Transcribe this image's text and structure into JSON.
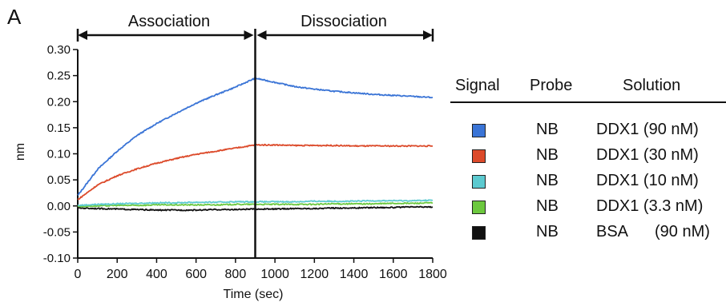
{
  "panel_label": "A",
  "phase_labels": {
    "association": "Association",
    "dissociation": "Dissociation"
  },
  "chart_data": {
    "type": "line",
    "xlabel": "Time (sec)",
    "ylabel": "nm",
    "xlim": [
      0,
      1800
    ],
    "ylim": [
      -0.1,
      0.3
    ],
    "x_ticks": [
      "0",
      "200",
      "400",
      "600",
      "800",
      "1000",
      "1200",
      "1400",
      "1600",
      "1800"
    ],
    "y_ticks": [
      "0.30",
      "0.25",
      "0.20",
      "0.15",
      "0.10",
      "0.05",
      "0.00",
      "-0.05",
      "-0.10"
    ],
    "phase_boundary": 900,
    "grid": false,
    "series": [
      {
        "probe": "NB",
        "solution": "DDX1 (90 nM)",
        "color": "#3a74d6",
        "x": [
          0,
          100,
          200,
          300,
          400,
          500,
          600,
          700,
          800,
          900,
          1000,
          1100,
          1200,
          1300,
          1400,
          1500,
          1600,
          1700,
          1800
        ],
        "y": [
          0.02,
          0.07,
          0.105,
          0.135,
          0.158,
          0.178,
          0.197,
          0.213,
          0.228,
          0.245,
          0.237,
          0.229,
          0.224,
          0.22,
          0.217,
          0.214,
          0.212,
          0.21,
          0.208
        ]
      },
      {
        "probe": "NB",
        "solution": "DDX1 (30 nM)",
        "color": "#dc4a2a",
        "x": [
          0,
          100,
          200,
          300,
          400,
          500,
          600,
          700,
          800,
          900,
          1000,
          1100,
          1200,
          1300,
          1400,
          1500,
          1600,
          1700,
          1800
        ],
        "y": [
          0.012,
          0.04,
          0.058,
          0.071,
          0.082,
          0.091,
          0.099,
          0.105,
          0.111,
          0.117,
          0.117,
          0.116,
          0.116,
          0.116,
          0.115,
          0.115,
          0.115,
          0.115,
          0.115
        ]
      },
      {
        "probe": "NB",
        "solution": "DDX1 (10 nM)",
        "color": "#5ccad0",
        "x": [
          0,
          100,
          200,
          300,
          400,
          500,
          600,
          700,
          800,
          900,
          1000,
          1100,
          1200,
          1300,
          1400,
          1500,
          1600,
          1700,
          1800
        ],
        "y": [
          0.001,
          0.003,
          0.004,
          0.005,
          0.006,
          0.006,
          0.007,
          0.007,
          0.008,
          0.008,
          0.008,
          0.008,
          0.009,
          0.009,
          0.009,
          0.01,
          0.01,
          0.01,
          0.011
        ]
      },
      {
        "probe": "NB",
        "solution": "DDX1 (3.3 nM)",
        "color": "#6cc83e",
        "x": [
          0,
          100,
          200,
          300,
          400,
          500,
          600,
          700,
          800,
          900,
          1000,
          1100,
          1200,
          1300,
          1400,
          1500,
          1600,
          1700,
          1800
        ],
        "y": [
          -0.001,
          0.0,
          0.001,
          0.001,
          0.002,
          0.002,
          0.002,
          0.002,
          0.003,
          0.003,
          0.003,
          0.003,
          0.003,
          0.004,
          0.004,
          0.004,
          0.005,
          0.005,
          0.006
        ]
      },
      {
        "probe": "NB",
        "solution": "BSA",
        "solution_conc": "(90 nM)",
        "color": "#111111",
        "x": [
          0,
          100,
          200,
          300,
          400,
          500,
          600,
          700,
          800,
          900,
          1000,
          1100,
          1200,
          1300,
          1400,
          1500,
          1600,
          1700,
          1800
        ],
        "y": [
          -0.004,
          -0.005,
          -0.006,
          -0.007,
          -0.008,
          -0.008,
          -0.008,
          -0.007,
          -0.007,
          -0.006,
          -0.006,
          -0.005,
          -0.005,
          -0.004,
          -0.004,
          -0.003,
          -0.003,
          -0.002,
          -0.002
        ]
      }
    ]
  },
  "legend": {
    "headers": {
      "signal": "Signal",
      "probe": "Probe",
      "solution": "Solution"
    }
  }
}
